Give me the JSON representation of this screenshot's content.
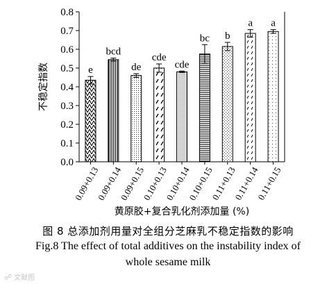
{
  "chart_data": {
    "type": "bar",
    "ylabel": "不稳定指数",
    "xlabel": "黄原胶+复合乳化剂添加量 (%)",
    "ylim": [
      0,
      0.8
    ],
    "yticks": [
      "0.0",
      "0.1",
      "0.2",
      "0.3",
      "0.4",
      "0.5",
      "0.6",
      "0.7",
      "0.8"
    ],
    "categories": [
      "0.09+0.13",
      "0.09+0.14",
      "0.09+0.15",
      "0.10+0.13",
      "0.10+0.14",
      "0.10+0.15",
      "0.11+0.13",
      "0.11+0.14",
      "0.11+0.15"
    ],
    "values": [
      0.435,
      0.545,
      0.46,
      0.5,
      0.48,
      0.575,
      0.615,
      0.685,
      0.695
    ],
    "errors": [
      0.02,
      0.008,
      0.01,
      0.022,
      0.004,
      0.05,
      0.022,
      0.02,
      0.01
    ],
    "significance_labels": [
      "e",
      "bcd",
      "de",
      "cde",
      "cde",
      "bc",
      "b",
      "a",
      "a"
    ],
    "patterns": [
      "zigzag",
      "vertical",
      "dots",
      "slash",
      "dense-dots",
      "horizontal",
      "fine-dots",
      "dashes",
      "sparse-dots"
    ],
    "grid": false,
    "legend": "none",
    "bar_color": "#000000"
  },
  "captions": {
    "cn": "图 8   总添加剂用量对全组分芝麻乳不稳定指数的影响",
    "en_line1": "Fig.8    The effect of total additives on the instability index of",
    "en_line2": "whole sesame milk"
  },
  "watermark": "文献图"
}
